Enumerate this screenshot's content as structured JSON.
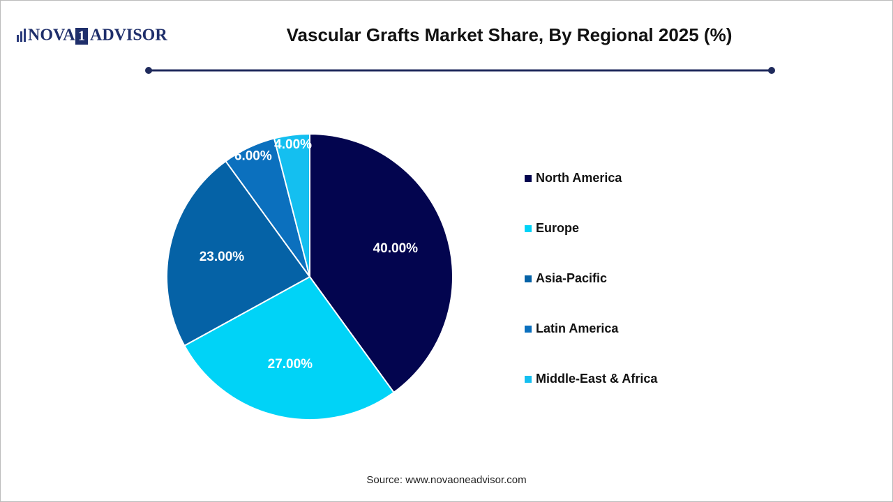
{
  "chart_data": {
    "type": "pie",
    "logo": [
      "NOVA",
      "1",
      "ADVISOR"
    ],
    "title": "Vascular Grafts Market Share, By Regional 2025 (%)",
    "categories": [
      "North America",
      "Europe",
      "Asia-Pacific",
      "Latin America",
      "Middle-East & Africa"
    ],
    "values": [
      40,
      27,
      23,
      6,
      4
    ],
    "value_labels": [
      "40.00%",
      "27.00%",
      "23.00%",
      "6.00%",
      "4.00%"
    ],
    "colors": [
      "#03054f",
      "#00d3f7",
      "#0562a6",
      "#0b70be",
      "#14bff0"
    ],
    "legend": "right",
    "source": "Source: www.novaoneadvisor.com"
  }
}
